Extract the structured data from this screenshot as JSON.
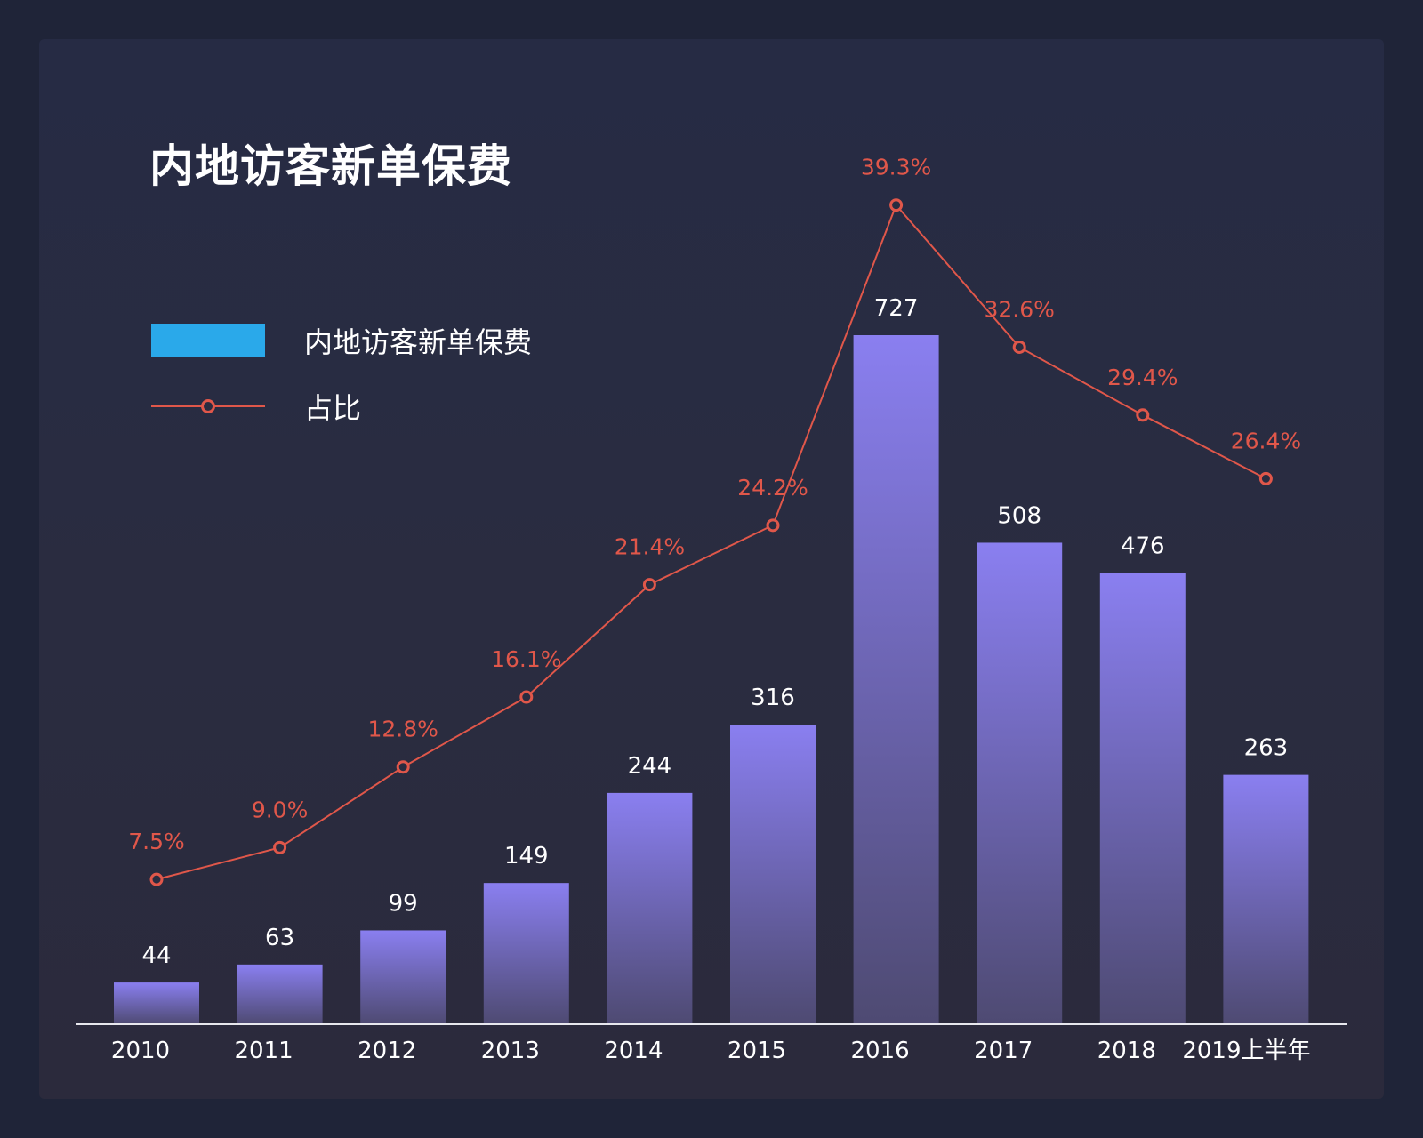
{
  "chart_data": {
    "type": "bar",
    "title": "内地访客新单保费",
    "categories": [
      "2010",
      "2011",
      "2012",
      "2013",
      "2014",
      "2015",
      "2016",
      "2017",
      "2018",
      "2019上半年"
    ],
    "series": [
      {
        "name": "内地访客新单保费",
        "type": "bar",
        "values": [
          44,
          63,
          99,
          149,
          244,
          316,
          727,
          508,
          476,
          263
        ],
        "labels": [
          "44",
          "63",
          "99",
          "149",
          "244",
          "316",
          "727",
          "508",
          "476",
          "263"
        ],
        "color": "#8a7ff0",
        "legend_color": "#2aa9ea"
      },
      {
        "name": "占比",
        "type": "line",
        "values": [
          7.5,
          9.0,
          12.8,
          16.1,
          21.4,
          24.2,
          39.3,
          32.6,
          29.4,
          26.4
        ],
        "labels": [
          "7.5%",
          "9.0%",
          "12.8%",
          "16.1%",
          "21.4%",
          "24.2%",
          "39.3%",
          "32.6%",
          "29.4%",
          "26.4%"
        ],
        "unit": "%",
        "color": "#e0574a"
      }
    ],
    "legend_position": "top-left",
    "grid": false
  }
}
